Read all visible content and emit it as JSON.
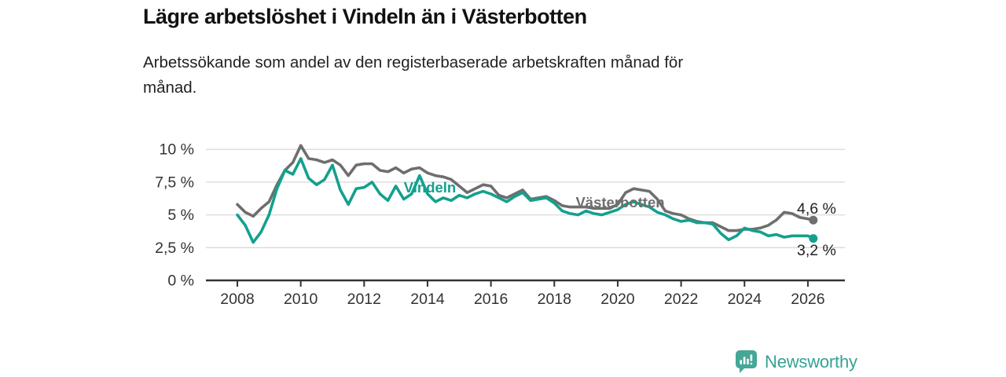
{
  "header": {
    "title": "Lägre arbetslöshet i Vindeln än i Västerbotten",
    "subtitle_lines": [
      "Arbetssökande som andel av den registerbaserade arbetskraften månad för",
      "månad."
    ]
  },
  "chart_data": {
    "type": "line",
    "title": "Lägre arbetslöshet i Vindeln än i Västerbotten",
    "subtitle": "Arbetssökande som andel av den registerbaserade arbetskraften månad för månad.",
    "x_unit": "decimal_year",
    "xlim": [
      2007.0,
      2027.2
    ],
    "ylim": [
      0,
      10.8
    ],
    "grid": "horizontal",
    "x_ticks": {
      "values": [
        2008,
        2010,
        2012,
        2014,
        2016,
        2018,
        2020,
        2022,
        2024,
        2026
      ],
      "labels": [
        "2008",
        "2010",
        "2012",
        "2014",
        "2016",
        "2018",
        "2020",
        "2022",
        "2024",
        "2026"
      ]
    },
    "y_ticks": {
      "values": [
        0,
        2.5,
        5,
        7.5,
        10
      ],
      "labels": [
        "0 %",
        "2,5 %",
        "5 %",
        "7,5 %",
        "10 %"
      ]
    },
    "x": [
      2008,
      2008.25,
      2008.5,
      2008.75,
      2009,
      2009.25,
      2009.5,
      2009.75,
      2010,
      2010.25,
      2010.5,
      2010.75,
      2011,
      2011.25,
      2011.5,
      2011.75,
      2012,
      2012.25,
      2012.5,
      2012.75,
      2013,
      2013.25,
      2013.5,
      2013.75,
      2014,
      2014.25,
      2014.5,
      2014.75,
      2015,
      2015.25,
      2015.5,
      2015.75,
      2016,
      2016.25,
      2016.5,
      2016.75,
      2017,
      2017.25,
      2017.5,
      2017.75,
      2018,
      2018.25,
      2018.5,
      2018.75,
      2019,
      2019.25,
      2019.5,
      2019.75,
      2020,
      2020.25,
      2020.5,
      2020.75,
      2021,
      2021.25,
      2021.5,
      2021.75,
      2022,
      2022.25,
      2022.5,
      2022.75,
      2023,
      2023.25,
      2023.5,
      2023.75,
      2024,
      2024.25,
      2024.5,
      2024.75,
      2025,
      2025.25,
      2025.5,
      2025.75,
      2026,
      2026.17
    ],
    "series": [
      {
        "name": "Vindeln",
        "color": "#14a08e",
        "end_label": "3,2 %",
        "end_value": 3.2,
        "values": [
          5.0,
          4.2,
          2.9,
          3.7,
          5.0,
          7.0,
          8.4,
          8.1,
          9.3,
          7.8,
          7.3,
          7.7,
          8.8,
          6.9,
          5.8,
          7.0,
          7.1,
          7.5,
          6.6,
          6.1,
          7.2,
          6.2,
          6.6,
          8.0,
          6.6,
          6.0,
          6.3,
          6.1,
          6.5,
          6.3,
          6.6,
          6.8,
          6.6,
          6.3,
          6.0,
          6.4,
          6.7,
          6.1,
          6.2,
          6.3,
          5.9,
          5.3,
          5.1,
          5.0,
          5.3,
          5.1,
          5.0,
          5.2,
          5.4,
          5.8,
          6.0,
          5.8,
          5.6,
          5.2,
          5.0,
          4.7,
          4.5,
          4.6,
          4.4,
          4.4,
          4.3,
          3.6,
          3.1,
          3.4,
          4.0,
          3.8,
          3.7,
          3.4,
          3.5,
          3.3,
          3.4,
          3.4,
          3.4,
          3.2
        ]
      },
      {
        "name": "Västerbotten",
        "color": "#6e6e6e",
        "end_label": "4,6 %",
        "end_value": 4.6,
        "values": [
          5.8,
          5.2,
          4.9,
          5.5,
          6.0,
          7.3,
          8.4,
          9.0,
          10.3,
          9.3,
          9.2,
          9.0,
          9.2,
          8.8,
          8.0,
          8.8,
          8.9,
          8.9,
          8.4,
          8.3,
          8.6,
          8.2,
          8.5,
          8.6,
          8.2,
          8.0,
          7.9,
          7.7,
          7.2,
          6.7,
          7.0,
          7.3,
          7.2,
          6.5,
          6.3,
          6.6,
          6.9,
          6.2,
          6.3,
          6.4,
          6.1,
          5.7,
          5.6,
          5.6,
          5.6,
          5.5,
          5.5,
          5.5,
          5.8,
          6.7,
          7.0,
          6.9,
          6.8,
          6.2,
          5.3,
          5.1,
          5.0,
          4.7,
          4.5,
          4.4,
          4.4,
          4.1,
          3.8,
          3.8,
          3.9,
          3.9,
          4.0,
          4.2,
          4.6,
          5.2,
          5.1,
          4.8,
          4.7,
          4.6
        ]
      }
    ],
    "legend_position": "inline-labels"
  },
  "footer": {
    "brand": "Newsworthy"
  },
  "colors": {
    "vindeln": "#14a08e",
    "vasterbotten": "#6e6e6e",
    "axis": "#333333",
    "grid": "#d9d9d9",
    "text": "#222222",
    "brand": "#35a294"
  }
}
